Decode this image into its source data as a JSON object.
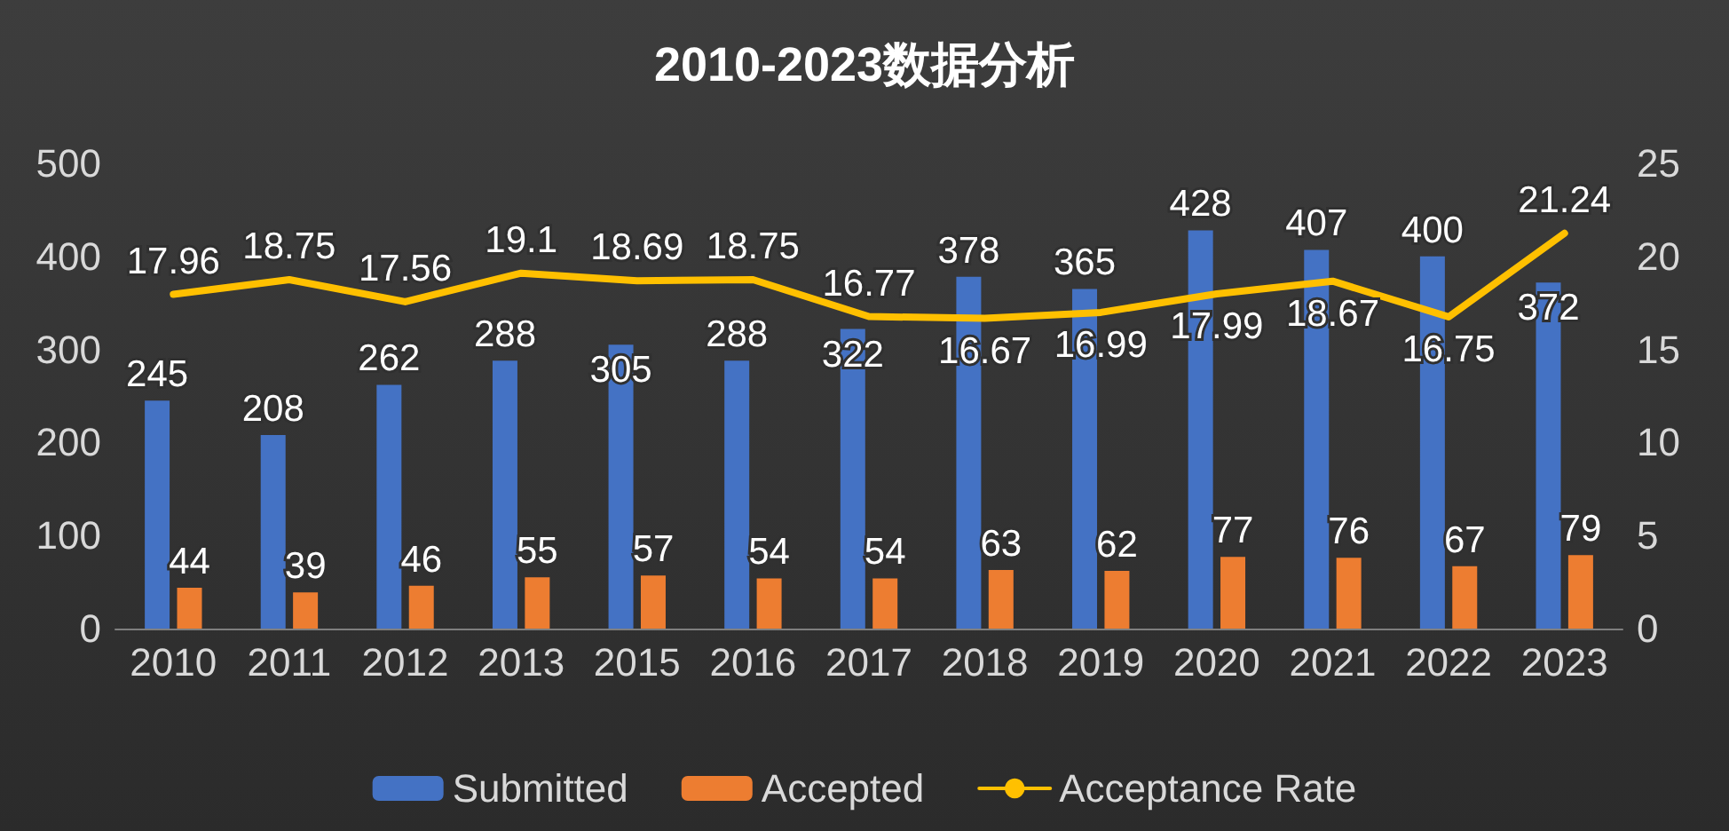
{
  "chart_data": {
    "type": "bar",
    "title": "2010-2023数据分析",
    "categories": [
      "2010",
      "2011",
      "2012",
      "2013",
      "2015",
      "2016",
      "2017",
      "2018",
      "2019",
      "2020",
      "2021",
      "2022",
      "2023"
    ],
    "series": [
      {
        "name": "Submitted",
        "color": "#4472c4",
        "values": [
          245,
          208,
          262,
          288,
          305,
          288,
          322,
          378,
          365,
          428,
          407,
          400,
          372
        ]
      },
      {
        "name": "Accepted",
        "color": "#ed7d31",
        "values": [
          44,
          39,
          46,
          55,
          57,
          54,
          54,
          63,
          62,
          77,
          76,
          67,
          79
        ]
      },
      {
        "name": "Acceptance Rate",
        "type": "line",
        "axis": "y2",
        "color": "#ffc000",
        "marker": "none",
        "line_style": "solid",
        "values": [
          17.96,
          18.75,
          17.56,
          19.1,
          18.69,
          18.75,
          16.77,
          16.67,
          16.99,
          17.99,
          18.67,
          16.75,
          21.24
        ]
      }
    ],
    "ylim": [
      0,
      500
    ],
    "yticks": [
      0,
      100,
      200,
      300,
      400,
      500
    ],
    "y2lim": [
      0,
      25
    ],
    "y2ticks": [
      0,
      5,
      10,
      15,
      20,
      25
    ],
    "data_labels": true,
    "grid": false,
    "legend": "bottom"
  }
}
